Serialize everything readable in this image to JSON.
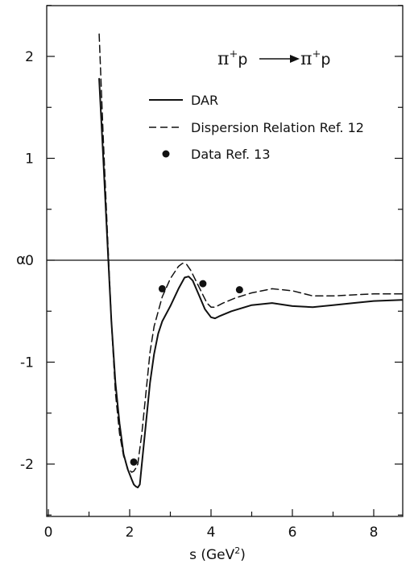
{
  "chart_data": {
    "type": "line",
    "title": "",
    "annotation": {
      "lhs": "π",
      "lhs_sup": "+",
      "lhs_p": "p",
      "rhs": "π",
      "rhs_sup": "+",
      "rhs_p": "p"
    },
    "xlabel": {
      "text": "s (GeV",
      "sup": "2",
      "close": ")"
    },
    "ylabel": "α",
    "xlim": [
      0,
      8.8
    ],
    "ylim": [
      -2.5,
      2.5
    ],
    "xticks": [
      0,
      2,
      4,
      6,
      8
    ],
    "xtick_labels": [
      "0",
      "2",
      "4",
      "6",
      "8"
    ],
    "yticks": [
      -2,
      -1,
      0,
      1,
      2
    ],
    "ytick_labels": [
      "-2",
      "-1",
      "0",
      "1",
      "2"
    ],
    "grid": false,
    "legend_placement": "top-right",
    "series": [
      {
        "name": "DAR",
        "style": "solid",
        "x": [
          1.25,
          1.35,
          1.45,
          1.55,
          1.65,
          1.75,
          1.85,
          1.95,
          2.05,
          2.1,
          2.15,
          2.2,
          2.25,
          2.3,
          2.4,
          2.5,
          2.6,
          2.7,
          2.8,
          3.0,
          3.2,
          3.35,
          3.45,
          3.55,
          3.7,
          3.85,
          4.0,
          4.1,
          4.2,
          4.5,
          5.0,
          5.5,
          6.0,
          6.5,
          7.0,
          7.5,
          8.0,
          8.7
        ],
        "y": [
          1.78,
          1.0,
          0.2,
          -0.6,
          -1.2,
          -1.6,
          -1.9,
          -2.05,
          -2.15,
          -2.2,
          -2.22,
          -2.23,
          -2.2,
          -2.0,
          -1.6,
          -1.2,
          -0.92,
          -0.72,
          -0.6,
          -0.45,
          -0.28,
          -0.17,
          -0.16,
          -0.2,
          -0.34,
          -0.48,
          -0.56,
          -0.57,
          -0.55,
          -0.5,
          -0.44,
          -0.42,
          -0.45,
          -0.46,
          -0.44,
          -0.42,
          -0.4,
          -0.39
        ]
      },
      {
        "name": "Dispersion Relation Ref. 12",
        "style": "dashed",
        "x": [
          1.25,
          1.35,
          1.45,
          1.55,
          1.65,
          1.75,
          1.85,
          1.95,
          2.05,
          2.1,
          2.15,
          2.2,
          2.3,
          2.4,
          2.5,
          2.6,
          2.8,
          3.0,
          3.2,
          3.3,
          3.4,
          3.5,
          3.7,
          3.9,
          4.0,
          4.1,
          4.3,
          4.6,
          5.0,
          5.5,
          6.0,
          6.5,
          7.0,
          7.5,
          8.0,
          8.7
        ],
        "y": [
          2.22,
          1.2,
          0.3,
          -0.6,
          -1.3,
          -1.7,
          -1.92,
          -2.04,
          -2.08,
          -2.07,
          -2.04,
          -2.0,
          -1.7,
          -1.3,
          -0.9,
          -0.65,
          -0.36,
          -0.18,
          -0.06,
          -0.03,
          -0.04,
          -0.1,
          -0.26,
          -0.42,
          -0.46,
          -0.46,
          -0.42,
          -0.37,
          -0.32,
          -0.28,
          -0.3,
          -0.35,
          -0.35,
          -0.34,
          -0.33,
          -0.33
        ]
      },
      {
        "name": "Data Ref. 13",
        "style": "points",
        "x": [
          2.1,
          2.8,
          3.8,
          4.7
        ],
        "y": [
          -1.98,
          -0.28,
          -0.23,
          -0.29
        ]
      }
    ]
  }
}
